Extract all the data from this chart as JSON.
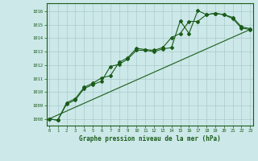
{
  "title": "Graphe pression niveau de la mer (hPa)",
  "bg_color": "#cce8e8",
  "grid_color": "#aacccc",
  "line_color": "#1a5c1a",
  "x_ticks": [
    0,
    1,
    2,
    3,
    4,
    5,
    6,
    7,
    8,
    9,
    10,
    11,
    12,
    13,
    14,
    15,
    16,
    17,
    18,
    19,
    20,
    21,
    22,
    23
  ],
  "y_ticks": [
    1008,
    1009,
    1010,
    1011,
    1012,
    1013,
    1014,
    1015,
    1016
  ],
  "ylim": [
    1007.5,
    1016.6
  ],
  "xlim": [
    -0.3,
    23.3
  ],
  "series1": [
    1008.0,
    1007.9,
    1009.1,
    1009.4,
    1010.25,
    1010.55,
    1010.8,
    1011.9,
    1012.05,
    1012.45,
    1013.1,
    1013.1,
    1013.0,
    1013.2,
    1013.3,
    1015.3,
    1014.35,
    1016.05,
    1015.75,
    1015.85,
    1015.75,
    1015.55,
    1014.85,
    1014.7
  ],
  "series2": [
    1008.0,
    1007.9,
    1009.2,
    1009.5,
    1010.35,
    1010.65,
    1011.05,
    1011.2,
    1012.2,
    1012.55,
    1013.25,
    1013.15,
    1013.1,
    1013.3,
    1014.05,
    1014.35,
    1015.25,
    1015.25,
    1015.75,
    1015.85,
    1015.75,
    1015.45,
    1014.75,
    1014.65
  ],
  "straight_line": [
    [
      0,
      23
    ],
    [
      1008.0,
      1014.65
    ]
  ]
}
